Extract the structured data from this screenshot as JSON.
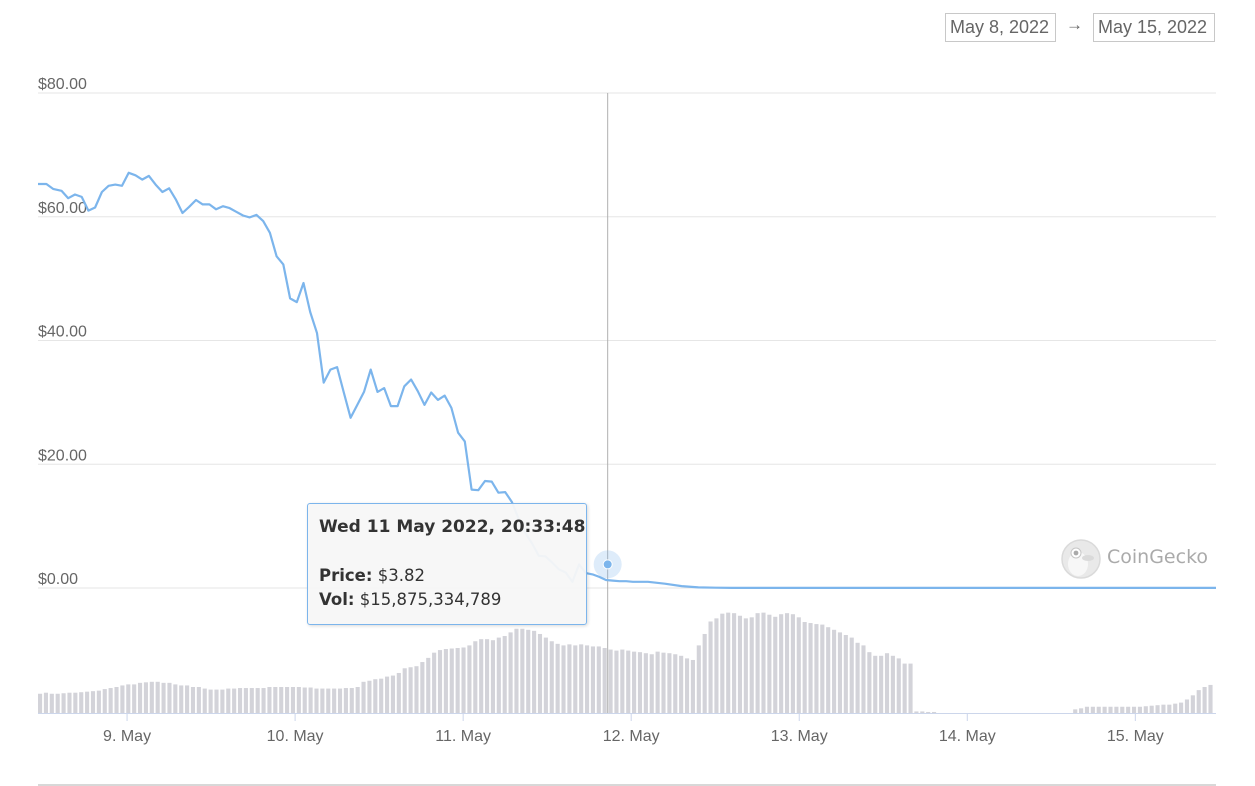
{
  "range": {
    "from": "May 8, 2022",
    "arrow": "→",
    "to": "May 15, 2022"
  },
  "brand": {
    "name": "CoinGecko",
    "icon": "gecko-logo-icon"
  },
  "tooltip": {
    "title": "Wed 11 May 2022, 20:33:48",
    "price_label": "Price:",
    "price_value": "$3.82",
    "vol_label": "Vol:",
    "vol_value": "$15,875,334,789"
  },
  "colors": {
    "line": "#7cb5ec",
    "volume": "#d3d3d9",
    "grid": "#e6e6e6",
    "crosshair": "#b0b0b0"
  },
  "chart_data": {
    "type": "line",
    "x_unit": "day (May 2022)",
    "xlim": [
      8.47,
      15.48
    ],
    "ylim": [
      0,
      80
    ],
    "y_ticks": [
      "$80.00",
      "$60.00",
      "$40.00",
      "$20.00",
      "$0.00"
    ],
    "y_tick_values": [
      80,
      60,
      40,
      20,
      0
    ],
    "x_ticks": [
      "9. May",
      "10. May",
      "11. May",
      "12. May",
      "13. May",
      "14. May",
      "15. May"
    ],
    "x_tick_values": [
      9,
      10,
      11,
      12,
      13,
      14,
      15
    ],
    "grid": true,
    "legend": "none",
    "series": [
      {
        "kind": "price",
        "x": [
          8.47,
          8.52,
          8.56,
          8.61,
          8.65,
          8.69,
          8.73,
          8.77,
          8.81,
          8.85,
          8.89,
          8.93,
          8.97,
          9.01,
          9.05,
          9.09,
          9.13,
          9.17,
          9.21,
          9.25,
          9.29,
          9.33,
          9.37,
          9.41,
          9.45,
          9.49,
          9.53,
          9.57,
          9.61,
          9.65,
          9.69,
          9.73,
          9.77,
          9.81,
          9.85,
          9.89,
          9.93,
          9.97,
          10.01,
          10.05,
          10.09,
          10.13,
          10.17,
          10.21,
          10.25,
          10.29,
          10.33,
          10.37,
          10.41,
          10.45,
          10.49,
          10.53,
          10.57,
          10.61,
          10.65,
          10.69,
          10.73,
          10.77,
          10.81,
          10.85,
          10.89,
          10.93,
          10.97,
          11.01,
          11.05,
          11.09,
          11.13,
          11.17,
          11.21,
          11.25,
          11.29,
          11.33,
          11.37,
          11.41,
          11.45,
          11.49,
          11.53,
          11.57,
          11.61,
          11.65,
          11.69,
          11.73,
          11.77,
          11.81,
          11.85,
          11.89,
          11.93,
          11.97,
          12.01,
          12.05,
          12.1,
          12.2,
          12.3,
          12.4,
          12.5,
          12.6,
          12.7,
          12.8,
          12.9,
          13.0,
          13.2,
          13.4,
          13.6,
          13.8,
          14.0,
          14.5,
          15.0,
          15.48
        ],
        "y": [
          65.3,
          65.3,
          64.5,
          64.2,
          63.0,
          63.6,
          63.2,
          61.0,
          61.5,
          64.0,
          65.0,
          65.2,
          65.0,
          67.1,
          66.7,
          66.0,
          66.6,
          65.2,
          64.0,
          64.6,
          62.8,
          60.6,
          61.6,
          62.7,
          62.0,
          62.0,
          61.2,
          61.7,
          61.4,
          60.8,
          60.2,
          59.9,
          60.3,
          59.3,
          57.4,
          53.6,
          52.3,
          46.8,
          46.2,
          49.3,
          44.6,
          41.2,
          33.2,
          35.3,
          35.7,
          31.6,
          27.5,
          29.6,
          31.7,
          35.3,
          31.7,
          32.3,
          29.4,
          29.4,
          32.6,
          33.7,
          31.8,
          29.6,
          31.6,
          30.4,
          31.1,
          29.1,
          25.1,
          23.7,
          15.9,
          15.8,
          17.3,
          17.2,
          15.4,
          15.5,
          13.9,
          11.2,
          8.9,
          7.2,
          5.2,
          5.1,
          4.1,
          3.0,
          2.5,
          1.0,
          3.82,
          2.4,
          2.2,
          1.8,
          1.3,
          1.2,
          1.1,
          1.1,
          1.0,
          1.0,
          1.0,
          0.7,
          0.3,
          0.1,
          0.05,
          0.02,
          0.01,
          0.01,
          0.01,
          0.01,
          0.01,
          0.01,
          0.01,
          0.01,
          0.01,
          0.01,
          0.01,
          0.01
        ]
      },
      {
        "kind": "volume",
        "x_start": 8.47,
        "x_step": 0.035,
        "relative_height": [
          0.37,
          0.39,
          0.37,
          0.37,
          0.38,
          0.39,
          0.39,
          0.4,
          0.41,
          0.42,
          0.43,
          0.46,
          0.48,
          0.5,
          0.53,
          0.55,
          0.55,
          0.58,
          0.59,
          0.6,
          0.6,
          0.58,
          0.58,
          0.55,
          0.53,
          0.53,
          0.5,
          0.5,
          0.47,
          0.45,
          0.45,
          0.45,
          0.47,
          0.47,
          0.48,
          0.48,
          0.48,
          0.48,
          0.48,
          0.5,
          0.5,
          0.5,
          0.5,
          0.5,
          0.5,
          0.49,
          0.49,
          0.47,
          0.47,
          0.47,
          0.47,
          0.47,
          0.48,
          0.48,
          0.5,
          0.6,
          0.62,
          0.65,
          0.66,
          0.7,
          0.72,
          0.77,
          0.86,
          0.88,
          0.9,
          0.98,
          1.06,
          1.16,
          1.21,
          1.23,
          1.24,
          1.25,
          1.26,
          1.3,
          1.38,
          1.42,
          1.42,
          1.4,
          1.45,
          1.48,
          1.55,
          1.62,
          1.62,
          1.6,
          1.58,
          1.52,
          1.45,
          1.38,
          1.33,
          1.3,
          1.32,
          1.3,
          1.32,
          1.3,
          1.28,
          1.28,
          1.25,
          1.22,
          1.2,
          1.22,
          1.2,
          1.18,
          1.17,
          1.15,
          1.13,
          1.18,
          1.16,
          1.15,
          1.13,
          1.1,
          1.05,
          1.02,
          1.3,
          1.52,
          1.76,
          1.82,
          1.91,
          1.93,
          1.92,
          1.87,
          1.82,
          1.84,
          1.92,
          1.93,
          1.89,
          1.85,
          1.9,
          1.92,
          1.9,
          1.84,
          1.75,
          1.73,
          1.71,
          1.7,
          1.65,
          1.6,
          1.55,
          1.5,
          1.45,
          1.35,
          1.3,
          1.17,
          1.1,
          1.1,
          1.15,
          1.1,
          1.05,
          0.95,
          0.95,
          0.03,
          0.03,
          0.02,
          0.02,
          0,
          0,
          0,
          0,
          0,
          0,
          0,
          0,
          0,
          0,
          0,
          0,
          0,
          0,
          0,
          0,
          0,
          0,
          0,
          0,
          0,
          0,
          0,
          0.07,
          0.09,
          0.12,
          0.12,
          0.12,
          0.12,
          0.12,
          0.12,
          0.12,
          0.12,
          0.12,
          0.12,
          0.13,
          0.14,
          0.15,
          0.16,
          0.16,
          0.18,
          0.2,
          0.26,
          0.34,
          0.44,
          0.5,
          0.54,
          0.56,
          0.58,
          0.58,
          0.56,
          0.56,
          0.58,
          0.6,
          0.6,
          0.6,
          0.6,
          0.6,
          0.6,
          0.6,
          0.58,
          0.58,
          0.58,
          0.58
        ]
      }
    ],
    "highlight": {
      "x": 11.86,
      "y": 3.82
    }
  }
}
